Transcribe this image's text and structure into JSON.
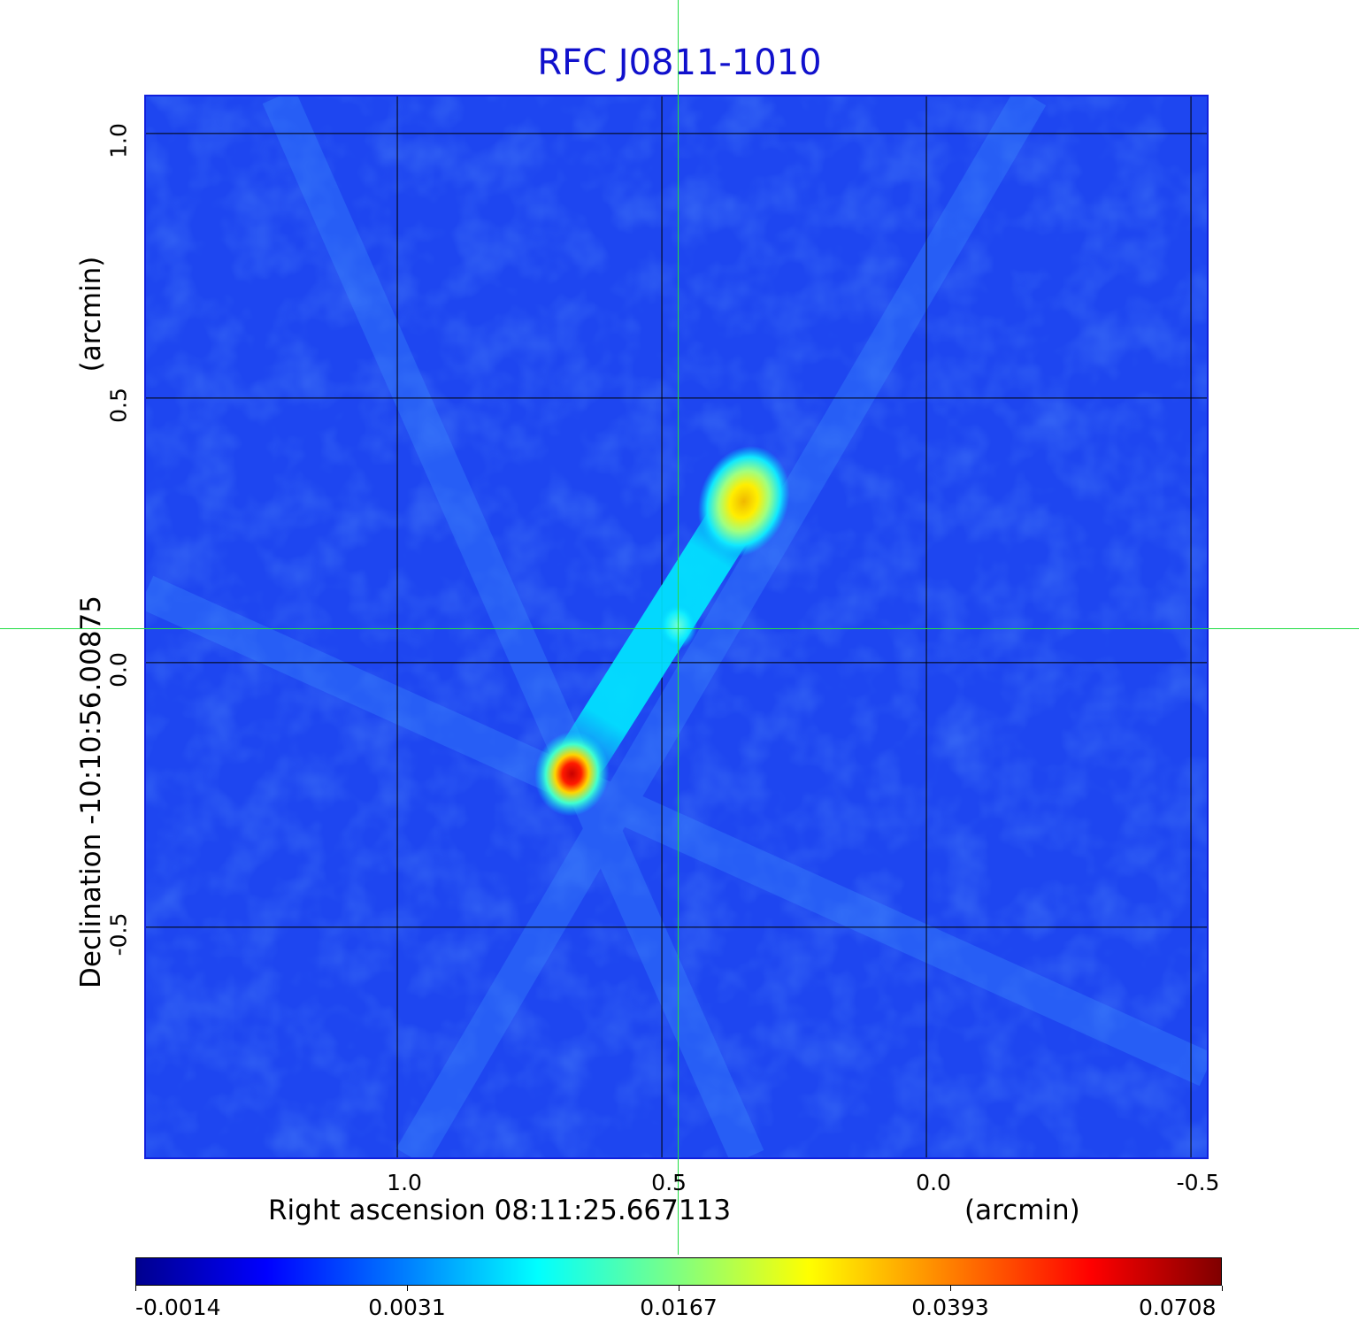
{
  "chart_data": {
    "type": "heatmap",
    "title": "RFC J0811-1010",
    "xlabel": "Right ascension  08:11:25.667113",
    "x_unit": "(arcmin)",
    "ylabel": "Declination  -10:10:56.00875",
    "y_unit": "(arcmin)",
    "x_ticks": [
      "1.0",
      "0.5",
      "0.0",
      "-0.5"
    ],
    "y_ticks": [
      "1.0",
      "0.5",
      "0.0",
      "-0.5"
    ],
    "x_tick_values": [
      1.0,
      0.5,
      0.0,
      -0.5
    ],
    "y_tick_values": [
      1.0,
      0.5,
      0.0,
      -0.5
    ],
    "xlim": [
      1.475,
      -0.53
    ],
    "ylim": [
      -0.935,
      1.07
    ],
    "grid": true,
    "colormap": "jet",
    "colorbar_ticks": [
      "-0.0014",
      "0.0031",
      "0.0167",
      "0.0393",
      "0.0708"
    ],
    "colorbar_values": [
      -0.0014,
      0.0031,
      0.0167,
      0.0393,
      0.0708
    ],
    "crosshair": {
      "x": 0.47,
      "y": 0.065
    },
    "sources": [
      {
        "label": "southeast component peak",
        "x": 0.67,
        "y": -0.21,
        "peak": 0.0708
      },
      {
        "label": "northwest component peak",
        "x": 0.345,
        "y": 0.305,
        "peak": 0.035
      },
      {
        "label": "core",
        "x": 0.47,
        "y": 0.07,
        "peak": 0.012
      }
    ],
    "colors": {
      "background_level": "#1e46f0",
      "grid": "#000000",
      "crosshair": "#22dd44"
    }
  }
}
